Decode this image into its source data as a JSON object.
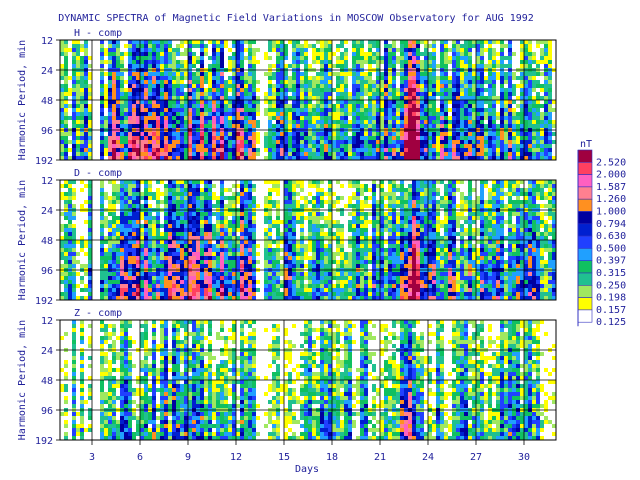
{
  "chart_data": {
    "type": "heatmap",
    "title": "DYNAMIC SPECTRA of Magnetic Field Variations in MOSCOW Observatory for AUG 1992",
    "xlabel": "Days",
    "ylabel": "Harmonic Period, min",
    "x_ticks": [
      "3",
      "6",
      "9",
      "12",
      "15",
      "18",
      "21",
      "24",
      "27",
      "30"
    ],
    "x_tick_values": [
      3,
      6,
      9,
      12,
      15,
      18,
      21,
      24,
      27,
      30
    ],
    "xlim": [
      1,
      32
    ],
    "y_scale": "log",
    "y_ticks": [
      "12",
      "24",
      "48",
      "96",
      "192"
    ],
    "y_tick_values": [
      12,
      24,
      48,
      96,
      192
    ],
    "ylim": [
      12,
      192
    ],
    "panels": [
      {
        "label": "H - comp",
        "intensity": 1.0
      },
      {
        "label": "D - comp",
        "intensity": 0.95
      },
      {
        "label": "Z - comp",
        "intensity": 0.6
      }
    ],
    "data_gap_days": [
      [
        3.0,
        3.55
      ],
      [
        13.4,
        13.8
      ]
    ],
    "storm_peak_day": 23.0,
    "colorbar": {
      "unit": "nT",
      "levels": [
        "2.520",
        "2.000",
        "1.587",
        "1.260",
        "1.000",
        "0.794",
        "0.630",
        "0.500",
        "0.397",
        "0.315",
        "0.250",
        "0.198",
        "0.157",
        "0.125"
      ],
      "colors": [
        "#a00040",
        "#ff4060",
        "#ff60c0",
        "#ff8090",
        "#ff9020",
        "#0000a0",
        "#0020d0",
        "#2040ff",
        "#20a0ff",
        "#10c060",
        "#20c090",
        "#a0e860",
        "#ffff00",
        "#ffffff"
      ]
    },
    "grid": true
  }
}
